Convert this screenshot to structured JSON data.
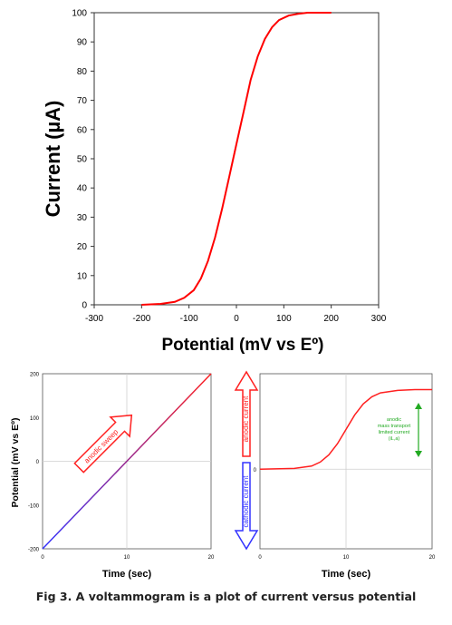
{
  "chart_data": [
    {
      "type": "line",
      "xlabel": "Potential (mV vs Eº)",
      "ylabel": "Current (µA)",
      "xlim": [
        -300,
        300
      ],
      "ylim": [
        0,
        100
      ],
      "x_ticks": [
        -300,
        -200,
        -100,
        0,
        100,
        200,
        300
      ],
      "y_ticks": [
        0,
        10,
        20,
        30,
        40,
        50,
        60,
        70,
        80,
        90,
        100
      ],
      "grid": false,
      "series": [
        {
          "color": "#ff0000",
          "x": [
            -200,
            -160,
            -130,
            -110,
            -90,
            -75,
            -60,
            -45,
            -30,
            -15,
            0,
            15,
            30,
            45,
            60,
            75,
            90,
            110,
            130,
            150,
            200
          ],
          "values": [
            0,
            0.3,
            1,
            2.4,
            5,
            9,
            15,
            23,
            33,
            44,
            55,
            66,
            77,
            85,
            91,
            95,
            97.5,
            99,
            99.6,
            100,
            100
          ]
        }
      ]
    },
    {
      "type": "line",
      "xlabel": "Time (sec)",
      "ylabel": "Potential (mV vs Eº)",
      "xlim": [
        0,
        20
      ],
      "ylim": [
        -200,
        200
      ],
      "x_ticks": [
        0,
        10,
        20
      ],
      "y_ticks": [
        -200,
        -100,
        0,
        100,
        200
      ],
      "grid": true,
      "series": [
        {
          "colors": [
            "#3333ff",
            "#ff2020"
          ],
          "x": [
            0,
            20
          ],
          "values": [
            -200,
            200
          ]
        }
      ],
      "annotations": [
        {
          "text": "anodic sweep",
          "color": "#ff2020"
        }
      ]
    },
    {
      "type": "line",
      "xlabel": "Time (sec)",
      "xlim": [
        0,
        20
      ],
      "ylim": [
        -10,
        12
      ],
      "x_ticks": [
        0,
        10,
        20
      ],
      "y_ticks": [
        0
      ],
      "grid": true,
      "series": [
        {
          "color": "#ff2020",
          "x": [
            0,
            4,
            6,
            7,
            8,
            9,
            10,
            11,
            12,
            13,
            14,
            16,
            18,
            20
          ],
          "values": [
            0,
            0.1,
            0.4,
            0.9,
            1.8,
            3.2,
            5,
            6.8,
            8.2,
            9.1,
            9.6,
            9.9,
            10,
            10
          ]
        }
      ],
      "annotations": [
        {
          "text": "anodic\nmass transport\nlimited current\n(iL,a)",
          "color": "#22aa22"
        },
        {
          "text": "anodic current",
          "color": "#ff2020"
        },
        {
          "text": "cathodic current",
          "color": "#3333ff"
        }
      ]
    }
  ],
  "caption": "Fig 3. A voltammogram is a plot of current versus potential"
}
